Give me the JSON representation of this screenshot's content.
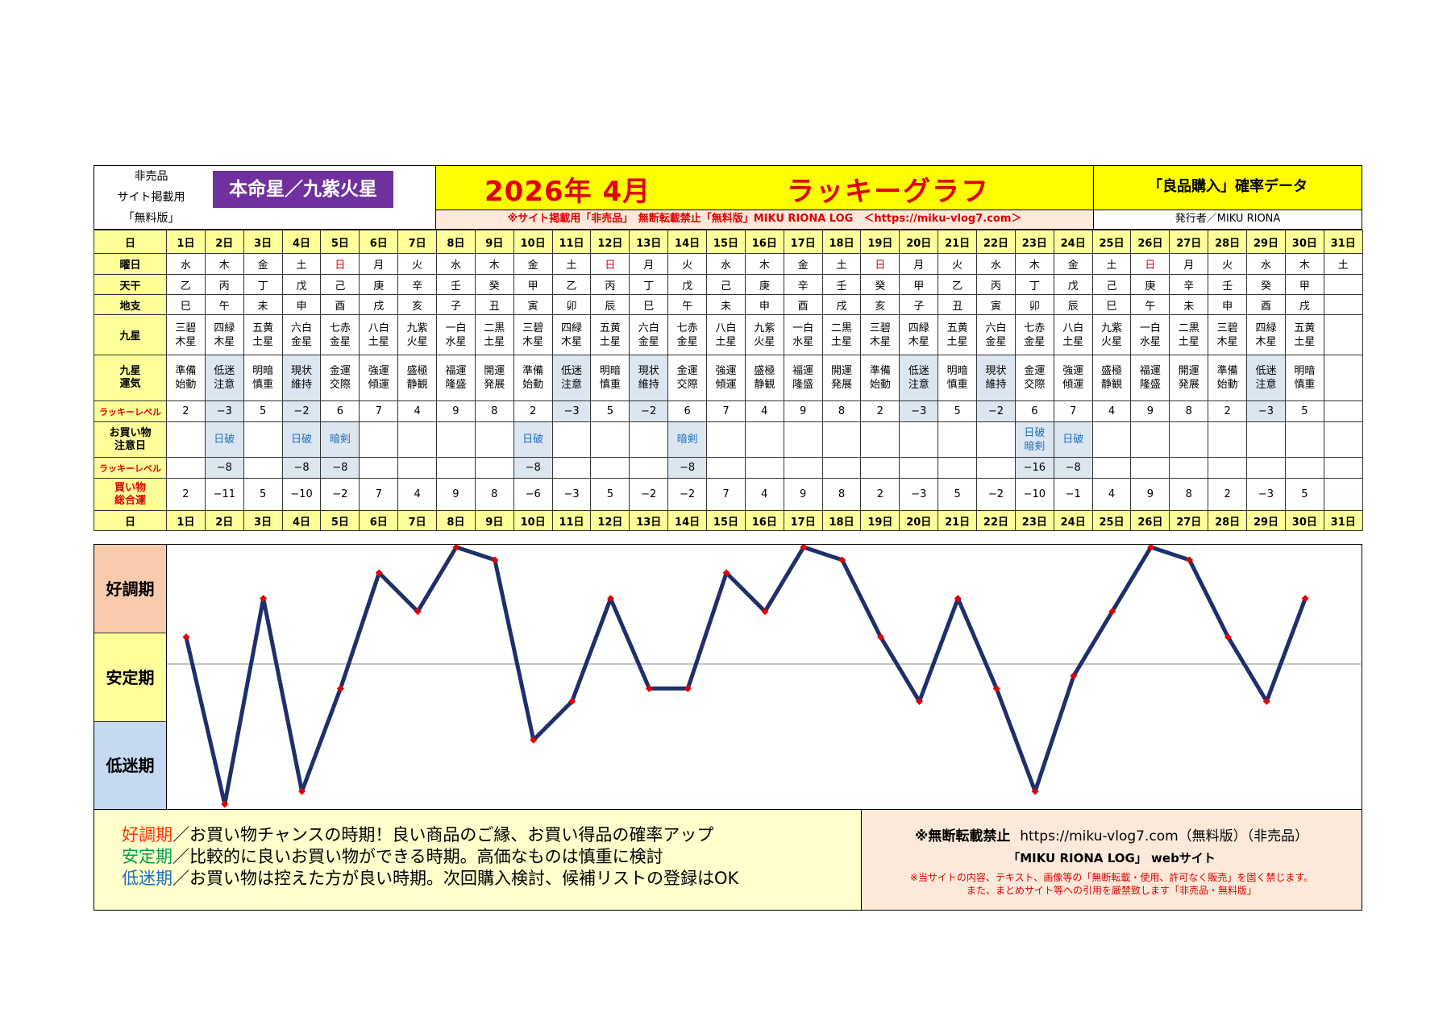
{
  "header": {
    "nonsale_lines": [
      "非売品",
      "サイト掲載用",
      "「無料版」"
    ],
    "honmei": "本命星／九紫火星",
    "title_date": "2026年 4月",
    "title_main": "ラッキーグラフ",
    "data_label": "「良品購入」確率データ",
    "notice": "※サイト掲載用「非売品」　無断転載禁止「無料版」MIKU RIONA LOG　＜https://miku-vlog7.com＞",
    "publisher": "発行者／MIKU RIONA"
  },
  "row_labels": {
    "day": "日",
    "weekday": "曜日",
    "tenkan": "天干",
    "chishi": "地支",
    "kyusei": "九星",
    "kyusei_un": [
      "九星",
      "運気"
    ],
    "lucky_level": "ラッキーレベル",
    "shopping_caution": [
      "お買い物",
      "注意日"
    ],
    "lucky_level2": "ラッキーレベル",
    "total": [
      "買い物",
      "総合運"
    ]
  },
  "days": [
    "1日",
    "2日",
    "3日",
    "4日",
    "5日",
    "6日",
    "7日",
    "8日",
    "9日",
    "10日",
    "11日",
    "12日",
    "13日",
    "14日",
    "15日",
    "16日",
    "17日",
    "18日",
    "19日",
    "20日",
    "21日",
    "22日",
    "23日",
    "24日",
    "25日",
    "26日",
    "27日",
    "28日",
    "29日",
    "30日",
    "31日"
  ],
  "weekdays": [
    "水",
    "木",
    "金",
    "土",
    "日",
    "月",
    "火",
    "水",
    "木",
    "金",
    "土",
    "日",
    "月",
    "火",
    "水",
    "木",
    "金",
    "土",
    "日",
    "月",
    "火",
    "水",
    "木",
    "金",
    "土",
    "日",
    "月",
    "火",
    "水",
    "木",
    "土"
  ],
  "tenkan": [
    "乙",
    "丙",
    "丁",
    "戊",
    "己",
    "庚",
    "辛",
    "壬",
    "癸",
    "甲",
    "乙",
    "丙",
    "丁",
    "戊",
    "己",
    "庚",
    "辛",
    "壬",
    "癸",
    "甲",
    "乙",
    "丙",
    "丁",
    "戊",
    "己",
    "庚",
    "辛",
    "壬",
    "癸",
    "甲",
    ""
  ],
  "chishi": [
    "巳",
    "午",
    "未",
    "申",
    "酉",
    "戌",
    "亥",
    "子",
    "丑",
    "寅",
    "卯",
    "辰",
    "巳",
    "午",
    "未",
    "申",
    "酉",
    "戌",
    "亥",
    "子",
    "丑",
    "寅",
    "卯",
    "辰",
    "巳",
    "午",
    "未",
    "申",
    "酉",
    "戌",
    ""
  ],
  "kyusei": [
    [
      "三碧",
      "木星"
    ],
    [
      "四緑",
      "木星"
    ],
    [
      "五黄",
      "土星"
    ],
    [
      "六白",
      "金星"
    ],
    [
      "七赤",
      "金星"
    ],
    [
      "八白",
      "土星"
    ],
    [
      "九紫",
      "火星"
    ],
    [
      "一白",
      "水星"
    ],
    [
      "二黒",
      "土星"
    ],
    [
      "三碧",
      "木星"
    ],
    [
      "四緑",
      "木星"
    ],
    [
      "五黄",
      "土星"
    ],
    [
      "六白",
      "金星"
    ],
    [
      "七赤",
      "金星"
    ],
    [
      "八白",
      "土星"
    ],
    [
      "九紫",
      "火星"
    ],
    [
      "一白",
      "水星"
    ],
    [
      "二黒",
      "土星"
    ],
    [
      "三碧",
      "木星"
    ],
    [
      "四緑",
      "木星"
    ],
    [
      "五黄",
      "土星"
    ],
    [
      "六白",
      "金星"
    ],
    [
      "七赤",
      "金星"
    ],
    [
      "八白",
      "土星"
    ],
    [
      "九紫",
      "火星"
    ],
    [
      "一白",
      "水星"
    ],
    [
      "二黒",
      "土星"
    ],
    [
      "三碧",
      "木星"
    ],
    [
      "四緑",
      "木星"
    ],
    [
      "五黄",
      "土星"
    ],
    [
      "",
      ""
    ]
  ],
  "kyusei_un": [
    [
      "準備",
      "始動"
    ],
    [
      "低迷",
      "注意"
    ],
    [
      "明暗",
      "慎重"
    ],
    [
      "現状",
      "維持"
    ],
    [
      "金運",
      "交際"
    ],
    [
      "強運",
      "傾運"
    ],
    [
      "盛極",
      "静観"
    ],
    [
      "福運",
      "隆盛"
    ],
    [
      "開運",
      "発展"
    ],
    [
      "準備",
      "始動"
    ],
    [
      "低迷",
      "注意"
    ],
    [
      "明暗",
      "慎重"
    ],
    [
      "現状",
      "維持"
    ],
    [
      "金運",
      "交際"
    ],
    [
      "強運",
      "傾運"
    ],
    [
      "盛極",
      "静観"
    ],
    [
      "福運",
      "隆盛"
    ],
    [
      "開運",
      "発展"
    ],
    [
      "準備",
      "始動"
    ],
    [
      "低迷",
      "注意"
    ],
    [
      "明暗",
      "慎重"
    ],
    [
      "現状",
      "維持"
    ],
    [
      "金運",
      "交際"
    ],
    [
      "強運",
      "傾運"
    ],
    [
      "盛極",
      "静観"
    ],
    [
      "福運",
      "隆盛"
    ],
    [
      "開運",
      "発展"
    ],
    [
      "準備",
      "始動"
    ],
    [
      "低迷",
      "注意"
    ],
    [
      "明暗",
      "慎重"
    ],
    [
      "",
      ""
    ]
  ],
  "lucky_level": [
    "2",
    "−3",
    "5",
    "−2",
    "6",
    "7",
    "4",
    "9",
    "8",
    "2",
    "−3",
    "5",
    "−2",
    "6",
    "7",
    "4",
    "9",
    "8",
    "2",
    "−3",
    "5",
    "−2",
    "6",
    "7",
    "4",
    "9",
    "8",
    "2",
    "−3",
    "5",
    ""
  ],
  "caution": [
    [
      ""
    ],
    [
      "日破"
    ],
    [
      ""
    ],
    [
      "日破"
    ],
    [
      "暗剣"
    ],
    [
      ""
    ],
    [
      ""
    ],
    [
      ""
    ],
    [
      ""
    ],
    [
      "日破"
    ],
    [
      ""
    ],
    [
      ""
    ],
    [
      ""
    ],
    [
      "暗剣"
    ],
    [
      ""
    ],
    [
      ""
    ],
    [
      ""
    ],
    [
      ""
    ],
    [
      ""
    ],
    [
      ""
    ],
    [
      ""
    ],
    [
      ""
    ],
    [
      "日破",
      "暗剣"
    ],
    [
      "日破"
    ],
    [
      ""
    ],
    [
      ""
    ],
    [
      ""
    ],
    [
      ""
    ],
    [
      ""
    ],
    [
      ""
    ],
    [
      ""
    ]
  ],
  "lucky_level2": [
    "",
    "−8",
    "",
    "−8",
    "−8",
    "",
    "",
    "",
    "",
    "−8",
    "",
    "",
    "",
    "−8",
    "",
    "",
    "",
    "",
    "",
    "",
    "",
    "",
    "−16",
    "−8",
    "",
    "",
    "",
    "",
    "",
    "",
    ""
  ],
  "total": [
    "2",
    "−11",
    "5",
    "−10",
    "−2",
    "7",
    "4",
    "9",
    "8",
    "−6",
    "−3",
    "5",
    "−2",
    "−2",
    "7",
    "4",
    "9",
    "8",
    "2",
    "−3",
    "5",
    "−2",
    "−10",
    "−1",
    "4",
    "9",
    "8",
    "2",
    "−3",
    "5",
    ""
  ],
  "zones": {
    "good": "好調期",
    "stable": "安定期",
    "low": "低迷期"
  },
  "chart_data": {
    "type": "line",
    "x": [
      "1日",
      "2日",
      "3日",
      "4日",
      "5日",
      "6日",
      "7日",
      "8日",
      "9日",
      "10日",
      "11日",
      "12日",
      "13日",
      "14日",
      "15日",
      "16日",
      "17日",
      "18日",
      "19日",
      "20日",
      "21日",
      "22日",
      "23日",
      "24日",
      "25日",
      "26日",
      "27日",
      "28日",
      "29日",
      "30日"
    ],
    "series": [
      {
        "values": [
          2,
          -11,
          5,
          -10,
          -2,
          7,
          4,
          9,
          8,
          -6,
          -3,
          5,
          -2,
          -2,
          7,
          4,
          9,
          8,
          2,
          -3,
          5,
          -2,
          -10,
          -1,
          4,
          9,
          8,
          2,
          -3,
          5
        ]
      }
    ],
    "ylim": [
      -11,
      9
    ],
    "line_color": "#1f2f6b",
    "marker_color": "#e00000"
  },
  "legend": {
    "good_key": "好調期",
    "good_text": "／お買い物チャンスの時期！良い商品のご縁、お買い得品の確率アップ",
    "stable_key": "安定期",
    "stable_text": "／比較的に良いお買い物ができる時期。高価なものは慎重に検討",
    "low_key": "低迷期",
    "low_text": "／お買い物は控えた方が良い時期。次回購入検討、候補リストの登録はOK"
  },
  "footer": {
    "line1_prefix": "※無断転載禁止",
    "line1_url": "https://miku-vlog7.com（無料版）（非売品）",
    "line2": "「MIKU RIONA LOG」 webサイト",
    "line3": "※当サイトの内容、テキスト、画像等の「無断転載・使用、許可なく販売」を固く禁じます。",
    "line4": "また、まとめサイト等への引用を厳禁致します「非売品・無料版」"
  },
  "colors": {
    "purple": "#7030a0",
    "yellow": "#ffff00",
    "red": "#e00000",
    "zone_good": "#f8cbad",
    "zone_stable": "#ffff99",
    "zone_low": "#c5d9f1"
  }
}
